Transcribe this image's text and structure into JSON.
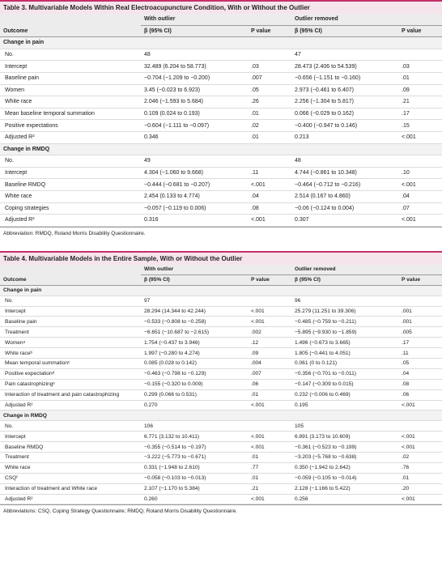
{
  "tables": [
    {
      "title": "Table 3. Multivariable Models Within Real Electroacupuncture Condition, With or Without the Outlier",
      "group_headers": [
        "With outlier",
        "Outlier removed"
      ],
      "headers": [
        "Outcome",
        "β (95% CI)",
        "P value",
        "β (95% CI)",
        "P value"
      ],
      "sections": [
        {
          "label": "Change in pain",
          "rows": [
            [
              "No.",
              "48",
              "47"
            ],
            [
              "Intercept",
              "32.489 (6.204 to 58.773)",
              ".03",
              "28.473 (2.406 to 54.539)",
              ".03"
            ],
            [
              "Baseline pain",
              "−0.704 (−1.209 to −0.200)",
              ".007",
              "−0.656 (−1.151 to −0.160)",
              ".01"
            ],
            [
              "Women",
              "3.45 (−0.023 to 6.923)",
              ".05",
              "2.973 (−0.461 to 6.407)",
              ".09"
            ],
            [
              "White race",
              "2.046 (−1.593 to 5.684)",
              ".26",
              "2.256 (−1.304 to 5.817)",
              ".21"
            ],
            [
              "Mean baseline temporal summation",
              "0.109 (0.024 to 0.193)",
              ".01",
              "0.066 (−0.029 to 0.162)",
              ".17"
            ],
            [
              "Positive expectations",
              "−0.604 (−1.111 to −0.097)",
              ".02",
              "−0.400 (−0.947 to 0.146)",
              ".15"
            ],
            [
              "Adjusted R²",
              "0.346",
              ".01",
              "0.213",
              "<.001"
            ]
          ]
        },
        {
          "label": "Change in RMDQ",
          "rows": [
            [
              "No.",
              "49",
              "48"
            ],
            [
              "Intercept",
              "4.304 (−1.060 to 9.668)",
              ".11",
              "4.744 (−0.861 to 10.348)",
              ".10"
            ],
            [
              "Baseline RMDQ",
              "−0.444 (−0.681 to −0.207)",
              "<.001",
              "−0.464 (−0.712 to −0.216)",
              "<.001"
            ],
            [
              "White race",
              "2.454 (0.133 to 4.774)",
              ".04",
              "2.514 (0.167 to 4.860)",
              ".04"
            ],
            [
              "Coping strategies",
              "−0.057 (−0.119 to 0.006)",
              ".08",
              "−0.06 (−0.124 to 0.004)",
              ".07"
            ],
            [
              "Adjusted R²",
              "0.316",
              "<.001",
              "0.307",
              "<.001"
            ]
          ]
        }
      ],
      "footnote": "Abbreviation: RMDQ, Roland Morris Disability Questionnaire."
    },
    {
      "title": "Table 4. Multivariable Models in the Entire Sample, With or Without the Outlier",
      "group_headers": [
        "With outlier",
        "Outlier removed"
      ],
      "headers": [
        "Outcome",
        "β (95% CI)",
        "P value",
        "β (95% CI)",
        "P value"
      ],
      "sections": [
        {
          "label": "Change in pain",
          "rows": [
            [
              "No.",
              "97",
              "96"
            ],
            [
              "Intercept",
              "28.294 (14.344 to 42.244)",
              "<.001",
              "25.279 (11.251 to 39.306)",
              ".001"
            ],
            [
              "Baseline pain",
              "−0.533 (−0.808 to −0.258)",
              "<.001",
              "−0.485 (−0.759 to −0.211)",
              ".001"
            ],
            [
              "Treatment",
              "−6.651 (−10.687 to −2.615)",
              ".002",
              "−5.895 (−9.930 to −1.859)",
              ".005"
            ],
            [
              "Womenᵃ",
              "1.754 (−0.437 to 3.946)",
              ".12",
              "1.496 (−0.673 to 3.665)",
              ".17"
            ],
            [
              "White raceᵇ",
              "1.997 (−0.280 to 4.274)",
              ".09",
              "1.805 (−0.441 to 4.051)",
              ".11"
            ],
            [
              "Mean temporal summationᶜ",
              "0.085 (0.028 to 0.142)",
              ".004",
              "0.061 (0 to 0.121)",
              ".05"
            ],
            [
              "Positive expectationᵈ",
              "−0.463 (−0.798 to −0.129)",
              ".007",
              "−0.356 (−0.701 to −0.011)",
              ".04"
            ],
            [
              "Pain catastrophizingᵉ",
              "−0.155 (−0.320 to 0.009)",
              ".06",
              "−0.147 (−0.309 to 0.015)",
              ".08"
            ],
            [
              "Interaction of treatment and pain catastrophizing",
              "0.299 (0.066 to 0.531)",
              ".01",
              "0.232 (−0.006 to 0.469)",
              ".06"
            ],
            [
              "Adjusted R²",
              "0.270",
              "<.001",
              "0.195",
              "<.001"
            ]
          ]
        },
        {
          "label": "Change in RMDQ",
          "rows": [
            [
              "No.",
              "106",
              "105"
            ],
            [
              "Intercept",
              "6.771 (3.132 to 10.411)",
              "<.001",
              "6.891 (3.173 to 10.609)",
              "<.001"
            ],
            [
              "Baseline RMDQ",
              "−0.355 (−0.514 to −0.197)",
              "<.001",
              "−0.361 (−0.523 to −0.199)",
              "<.001"
            ],
            [
              "Treatment",
              "−3.222 (−5.773 to −0.671)",
              ".01",
              "−3.203 (−5.768 to −0.638)",
              ".02"
            ],
            [
              "White race",
              "0.331 (−1.948 to 2.610)",
              ".77",
              "0.350 (−1.942 to 2.642)",
              ".76"
            ],
            [
              "CSQᶠ",
              "−0.058 (−0.103 to −0.013)",
              ".01",
              "−0.059 (−0.105 to −0.014)",
              ".01"
            ],
            [
              "Interaction of treatment and White race",
              "2.107 (−1.170 to 5.384)",
              ".21",
              "2.128 (−1.166 to 5.422)",
              ".20"
            ],
            [
              "Adjusted R²",
              "0.260",
              "<.001",
              "0.256",
              "<.001"
            ]
          ]
        }
      ],
      "footnote": "Abbreviations: CSQ, Coping Strategy Questionnaire; RMDQ, Roland Morris Disability Questionnaire."
    }
  ]
}
